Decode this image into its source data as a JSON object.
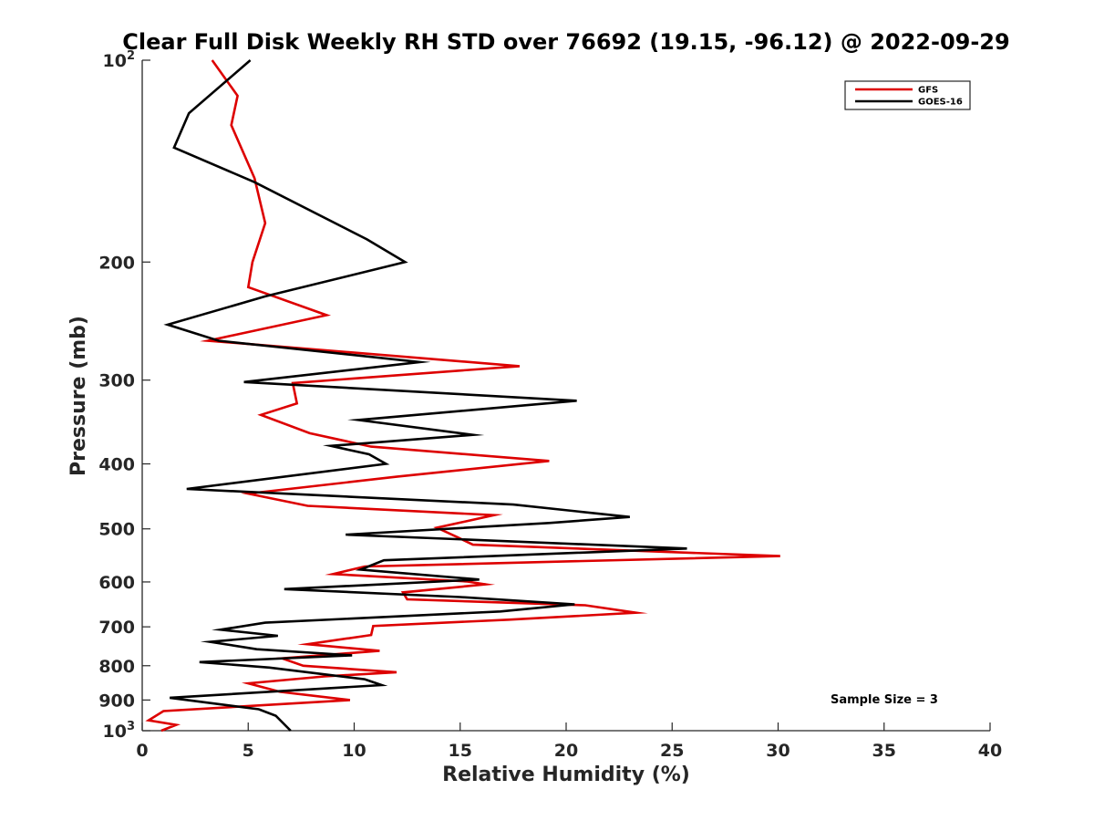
{
  "chart_data": {
    "type": "line",
    "title": "Clear Full Disk Weekly RH STD over 76692 (19.15, -96.12) @ 2022-09-29",
    "xlabel": "Relative Humidity (%)",
    "ylabel": "Pressure (mb)",
    "xlim": [
      0,
      40
    ],
    "ylim": [
      100,
      1000
    ],
    "yscale": "log",
    "y_reversed": true,
    "xticks": [
      0,
      5,
      10,
      15,
      20,
      25,
      30,
      35,
      40
    ],
    "xtick_labels": [
      "0",
      "5",
      "10",
      "15",
      "20",
      "25",
      "30",
      "35",
      "40"
    ],
    "yticks": [
      100,
      200,
      300,
      400,
      500,
      600,
      700,
      800,
      900,
      1000
    ],
    "ytick_labels": [
      {
        "base": "10",
        "exp": "2"
      },
      {
        "base": "200",
        "exp": ""
      },
      {
        "base": "300",
        "exp": ""
      },
      {
        "base": "400",
        "exp": ""
      },
      {
        "base": "500",
        "exp": ""
      },
      {
        "base": "600",
        "exp": ""
      },
      {
        "base": "700",
        "exp": ""
      },
      {
        "base": "800",
        "exp": ""
      },
      {
        "base": "900",
        "exp": ""
      },
      {
        "base": "10",
        "exp": "3"
      }
    ],
    "legend_position": "top-right",
    "annotation": "Sample Size = 3",
    "grid": false,
    "series": [
      {
        "name": "GFS",
        "color": "#dd0000",
        "points": [
          [
            3.3,
            100
          ],
          [
            4.5,
            113
          ],
          [
            4.2,
            125
          ],
          [
            5.3,
            150
          ],
          [
            5.8,
            175
          ],
          [
            5.2,
            200
          ],
          [
            5.0,
            218
          ],
          [
            8.7,
            240
          ],
          [
            3.1,
            262
          ],
          [
            17.8,
            286
          ],
          [
            7.1,
            303
          ],
          [
            7.3,
            325
          ],
          [
            5.6,
            338
          ],
          [
            7.9,
            360
          ],
          [
            10.8,
            377
          ],
          [
            19.2,
            396
          ],
          [
            12.0,
            418
          ],
          [
            5.0,
            443
          ],
          [
            7.8,
            462
          ],
          [
            16.6,
            477
          ],
          [
            13.9,
            498
          ],
          [
            14.9,
            515
          ],
          [
            15.6,
            528
          ],
          [
            30.1,
            549
          ],
          [
            10.5,
            569
          ],
          [
            9.0,
            584
          ],
          [
            15.3,
            599
          ],
          [
            16.2,
            605
          ],
          [
            12.3,
            622
          ],
          [
            12.5,
            637
          ],
          [
            20.9,
            650
          ],
          [
            23.3,
            667
          ],
          [
            17.3,
            683
          ],
          [
            10.9,
            698
          ],
          [
            10.8,
            720
          ],
          [
            7.8,
            743
          ],
          [
            11.2,
            760
          ],
          [
            6.6,
            780
          ],
          [
            7.6,
            800
          ],
          [
            12.0,
            818
          ],
          [
            8.6,
            830
          ],
          [
            5.0,
            850
          ],
          [
            6.5,
            875
          ],
          [
            9.8,
            900
          ],
          [
            1.0,
            935
          ],
          [
            0.3,
            965
          ],
          [
            1.6,
            980
          ],
          [
            0.9,
            1000
          ]
        ]
      },
      {
        "name": "GOES-16",
        "color": "#000000",
        "points": [
          [
            5.1,
            100
          ],
          [
            2.2,
            120
          ],
          [
            1.5,
            135
          ],
          [
            5.3,
            152
          ],
          [
            10.6,
            185
          ],
          [
            12.4,
            200
          ],
          [
            5.8,
            225
          ],
          [
            1.2,
            248
          ],
          [
            3.6,
            262
          ],
          [
            13.1,
            282
          ],
          [
            4.8,
            302
          ],
          [
            20.5,
            322
          ],
          [
            10.2,
            344
          ],
          [
            15.6,
            362
          ],
          [
            8.9,
            376
          ],
          [
            10.7,
            387
          ],
          [
            11.5,
            400
          ],
          [
            2.1,
            436
          ],
          [
            17.5,
            460
          ],
          [
            23.0,
            480
          ],
          [
            19.2,
            490
          ],
          [
            9.6,
            510
          ],
          [
            25.7,
            535
          ],
          [
            11.4,
            557
          ],
          [
            10.3,
            575
          ],
          [
            15.9,
            595
          ],
          [
            6.7,
            615
          ],
          [
            15.0,
            632
          ],
          [
            20.4,
            648
          ],
          [
            16.9,
            664
          ],
          [
            5.8,
            690
          ],
          [
            3.7,
            707
          ],
          [
            6.4,
            722
          ],
          [
            3.2,
            737
          ],
          [
            5.4,
            756
          ],
          [
            9.9,
            772
          ],
          [
            2.7,
            790
          ],
          [
            6.0,
            805
          ],
          [
            10.5,
            838
          ],
          [
            11.3,
            855
          ],
          [
            1.3,
            893
          ],
          [
            5.5,
            929
          ],
          [
            6.3,
            950
          ],
          [
            7.0,
            1000
          ]
        ]
      }
    ]
  }
}
